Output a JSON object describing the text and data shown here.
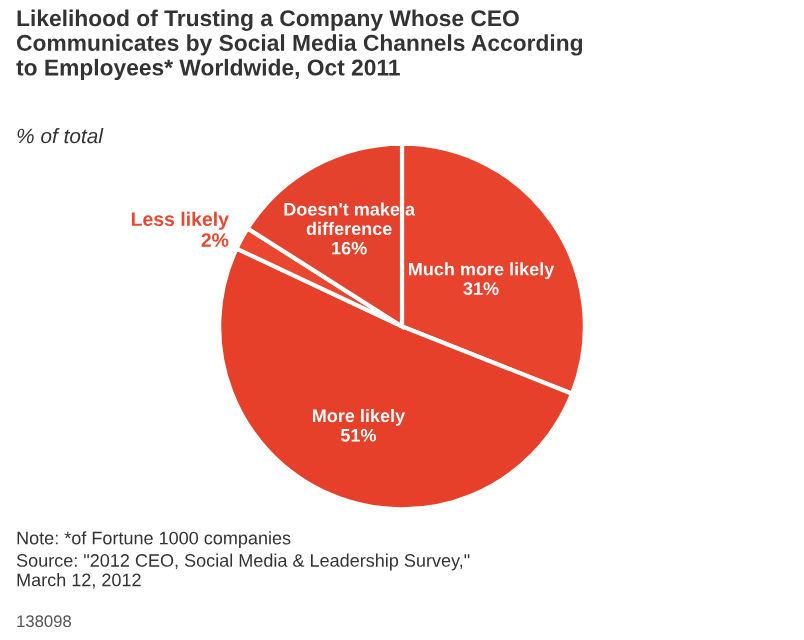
{
  "chart_data": {
    "type": "pie",
    "title": "Likelihood of Trusting a Company Whose CEO\nCommunicates by Social Media Channels According\nto Employees* Worldwide, Oct 2011",
    "subtitle": "% of total",
    "categories": [
      "Much more likely",
      "More likely",
      "Less likely",
      "Doesn't make a\ndifference"
    ],
    "values": [
      31,
      51,
      2,
      16
    ],
    "colors": [
      "#e8432d",
      "#e6402a",
      "#ea4630",
      "#e4422c"
    ],
    "value_labels": [
      "31%",
      "51%",
      "2%",
      "16%"
    ],
    "annotations": [
      "Note: *of Fortune 1000 companies",
      "Source: \"2012 CEO, Social Media & Leadership Survey,\"\nMarch 12, 2012",
      "138098"
    ]
  }
}
